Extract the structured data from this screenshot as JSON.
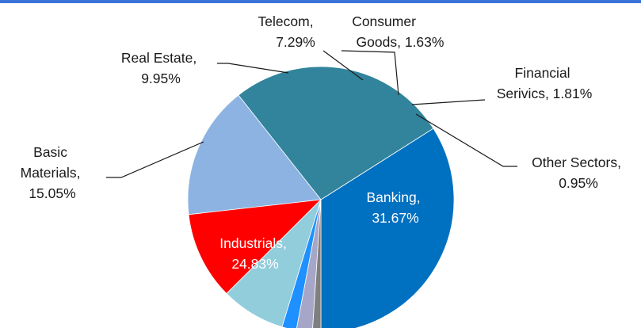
{
  "chart_data": {
    "type": "pie",
    "title": "",
    "slices": [
      {
        "name": "Banking",
        "value": 31.67,
        "label_line1": "Banking,",
        "label_line2": "31.67%",
        "color": "#0070c0"
      },
      {
        "name": "Industrials",
        "value": 24.83,
        "label_line1": "Industrials,",
        "label_line2": "24.83%",
        "color": "#31849b"
      },
      {
        "name": "Basic Materials",
        "value": 15.05,
        "label_line1": "Basic",
        "label_line2": "Materials,",
        "label_line3": "15.05%",
        "color": "#8db3e2"
      },
      {
        "name": "Real Estate",
        "value": 9.95,
        "label_line1": "Real Estate,",
        "label_line2": "9.95%",
        "color": "#ff0000"
      },
      {
        "name": "Telecom",
        "value": 7.29,
        "label_line1": "Telecom,",
        "label_line2": "7.29%",
        "color": "#92cddc"
      },
      {
        "name": "Consumer Goods",
        "value": 1.63,
        "label_line1": "Consumer",
        "label_line2": "Goods, 1.63%",
        "color": "#1e90ff"
      },
      {
        "name": "Financial Serivics",
        "value": 1.81,
        "label_line1": "Financial",
        "label_line2": "Serivics, 1.81%",
        "color": "#a6a6c8"
      },
      {
        "name": "Other Sectors",
        "value": 0.95,
        "label_line1": "Other Sectors,",
        "label_line2": "0.95%",
        "color": "#7f7f7f"
      }
    ],
    "legend": "none",
    "data_labels": "on-slice and outside with leader lines"
  }
}
